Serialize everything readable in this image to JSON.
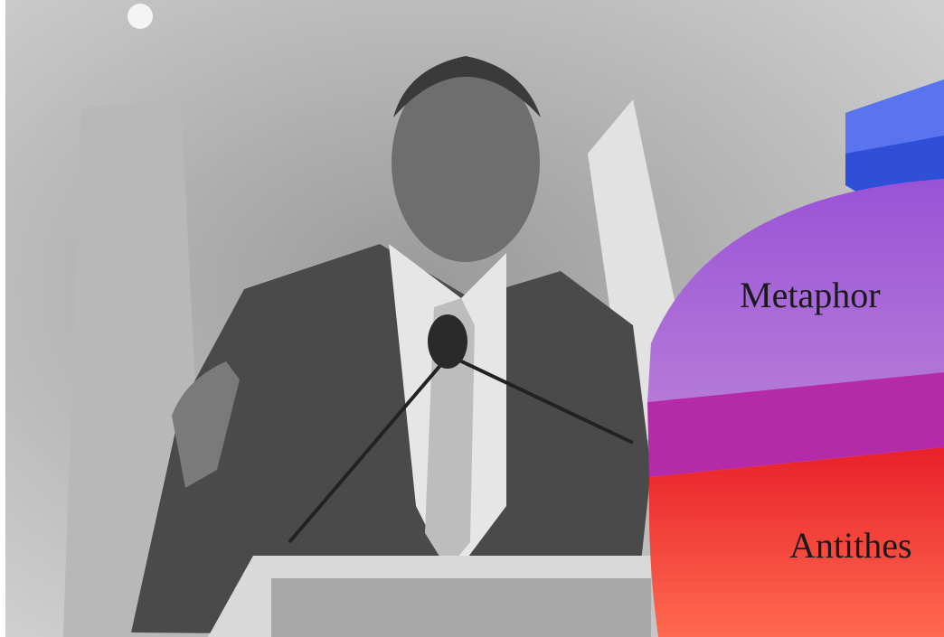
{
  "pie_labels": [
    "Metaphor",
    "Antithes"
  ]
}
